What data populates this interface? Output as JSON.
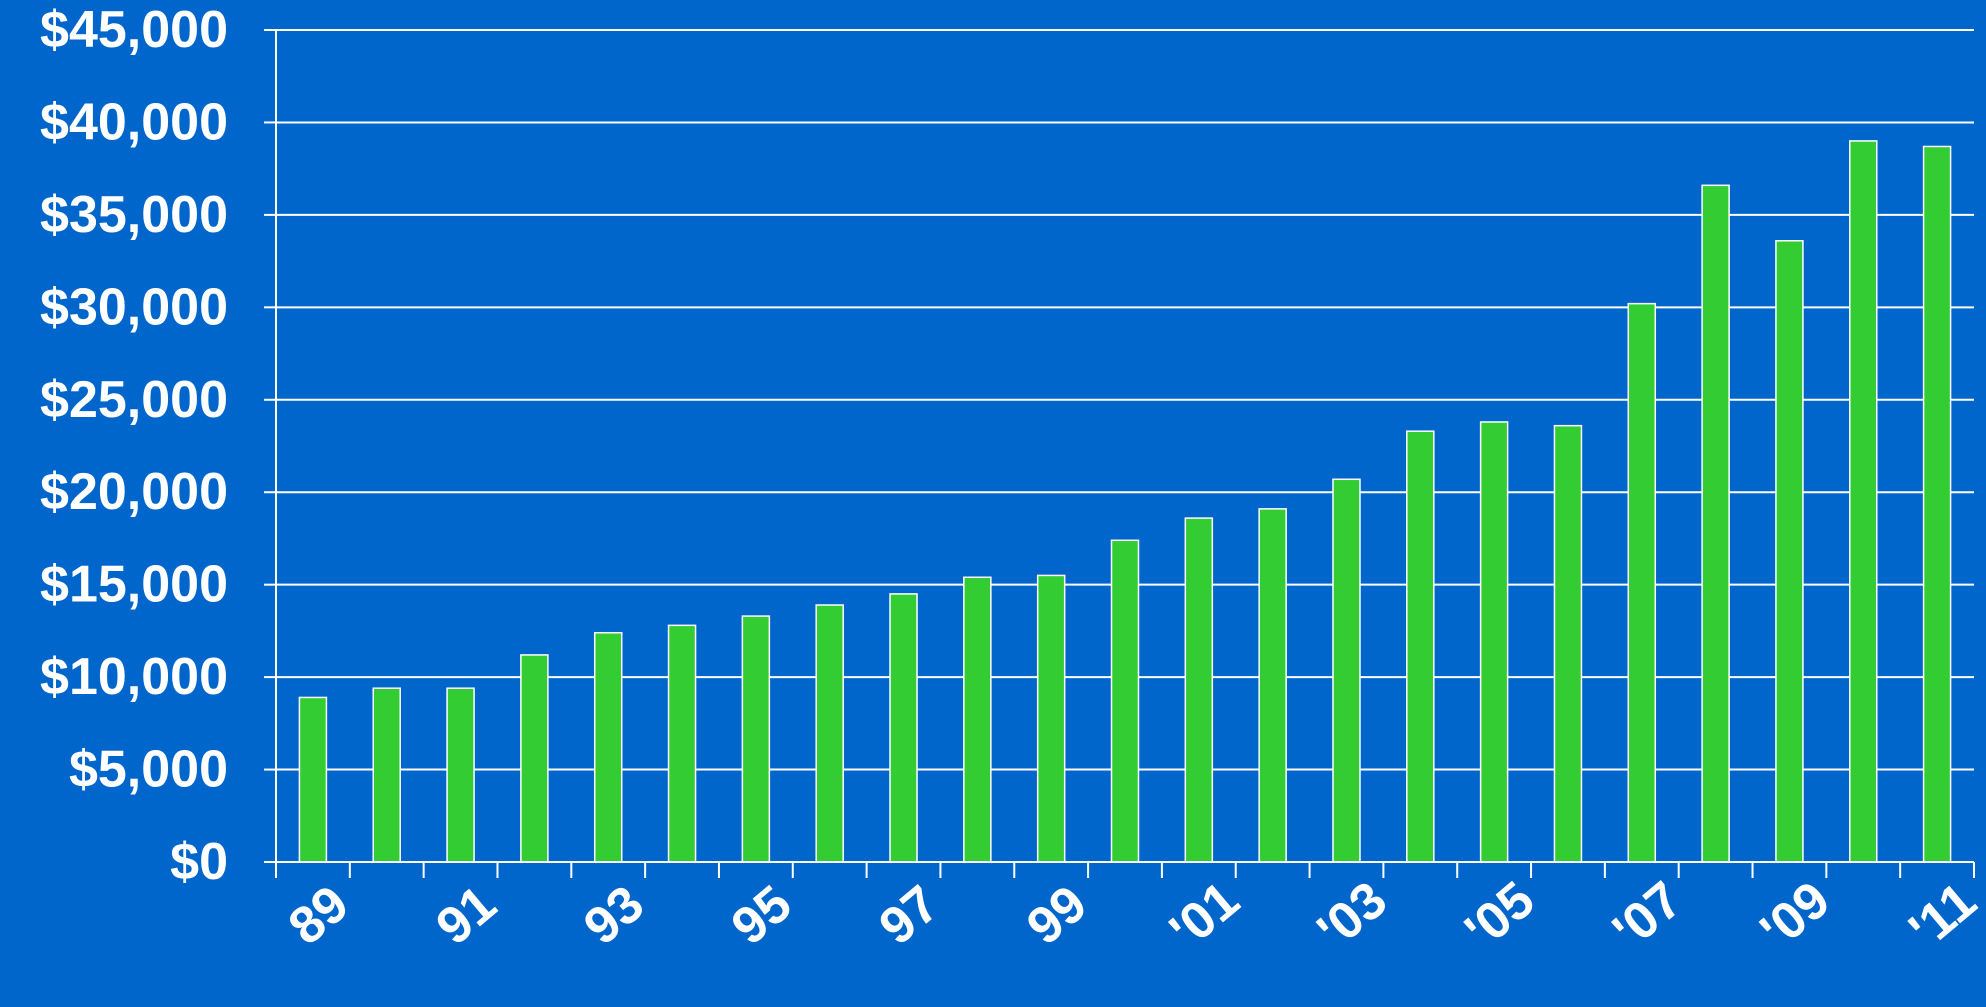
{
  "chart_data": {
    "type": "bar",
    "title": "",
    "xlabel": "",
    "ylabel": "",
    "categories": [
      "1989",
      "1990",
      "1991",
      "1992",
      "1993",
      "1994",
      "1995",
      "1996",
      "1997",
      "1998",
      "1999",
      "2000",
      "2001",
      "2002",
      "2003",
      "2004",
      "2005",
      "2006",
      "2007",
      "2008",
      "2009",
      "2010",
      "2011"
    ],
    "values": [
      8900,
      9400,
      9400,
      11200,
      12400,
      12800,
      13300,
      13900,
      14500,
      15400,
      15500,
      17400,
      18600,
      19100,
      20700,
      23300,
      23800,
      23600,
      30200,
      36600,
      33600,
      39000,
      38700
    ],
    "x_tick_labels": [
      "89",
      "",
      "91",
      "",
      "93",
      "",
      "95",
      "",
      "97",
      "",
      "99",
      "",
      "'01",
      "",
      "'03",
      "",
      "'05",
      "",
      "'07",
      "",
      "'09",
      "",
      "'11"
    ],
    "y_tick_labels": [
      "$0",
      "$5,000",
      "$10,000",
      "$15,000",
      "$20,000",
      "$25,000",
      "$30,000",
      "$35,000",
      "$40,000",
      "$45,000"
    ],
    "ylim": [
      0,
      45000
    ],
    "grid": true,
    "legend": "none",
    "colors": {
      "background": "#0066cc",
      "bar_fill": "#33cc33",
      "bar_stroke": "#ffffff",
      "grid": "#ffffff",
      "text": "#ffffff"
    }
  }
}
